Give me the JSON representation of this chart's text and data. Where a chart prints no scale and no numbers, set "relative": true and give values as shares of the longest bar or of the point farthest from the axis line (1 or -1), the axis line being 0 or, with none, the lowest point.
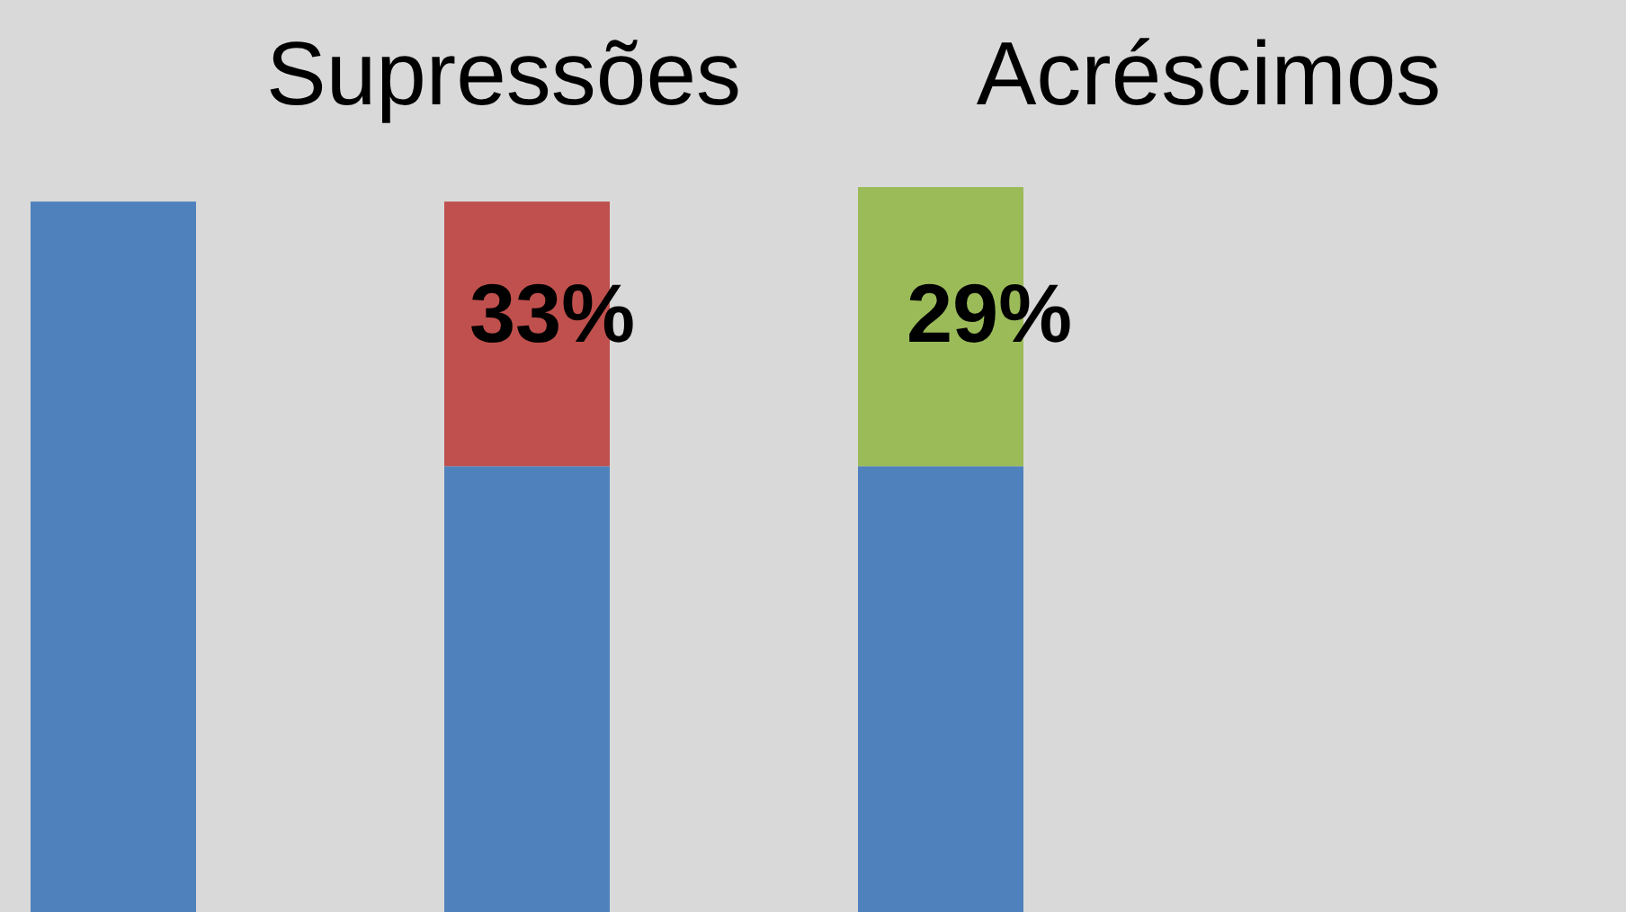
{
  "chart_data": {
    "type": "bar",
    "relative": true,
    "stacked": true,
    "categories": [
      null,
      null,
      null
    ],
    "series": [
      {
        "color": "#4f81bd",
        "values": [
          0.98,
          0.615,
          0.615
        ]
      },
      {
        "colors": [
          null,
          "#c0504d",
          "#9bbb59"
        ],
        "values": [
          null,
          0.365,
          0.385
        ]
      }
    ],
    "annotations": [
      "Supressões",
      "Acréscimos",
      "33%",
      "29%"
    ]
  }
}
